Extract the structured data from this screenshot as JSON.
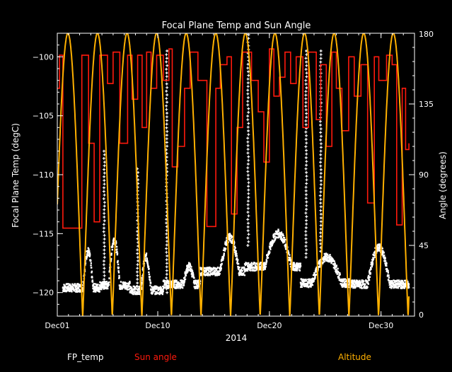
{
  "chart_data": {
    "type": "line",
    "title": "Focal Plane Temp and Sun Angle",
    "xlabel": "2014",
    "ylabel_left": "Focal Plane Temp (degC)",
    "ylabel_right": "Angle (degrees)",
    "x_unit": "day of December 2014",
    "xlim": [
      0,
      32
    ],
    "ylim_left": [
      -122,
      -98
    ],
    "ylim_right": [
      0,
      180
    ],
    "x_ticks": [
      {
        "label": "Dec01",
        "value": 0
      },
      {
        "label": "Dec10",
        "value": 9
      },
      {
        "label": "Dec20",
        "value": 19
      },
      {
        "label": "Dec30",
        "value": 29
      }
    ],
    "y_ticks_left": [
      -100,
      -105,
      -110,
      -115,
      -120
    ],
    "y_ticks_right": [
      0,
      45,
      90,
      135,
      180
    ],
    "grid": false,
    "legend_position": "bottom",
    "colors": {
      "background": "#000000",
      "axes": "#ffffff",
      "fp_temp": "#ffffff",
      "sun_angle": "#ff1a0d",
      "altitude": "#ffb000"
    },
    "series": [
      {
        "name": "FP_temp",
        "axis": "left",
        "style": "points",
        "segments": [
          {
            "x0": 0.5,
            "x1": 3.8,
            "base": -119.6,
            "bump": [
              2.3,
              3.2,
              -116.5
            ]
          },
          {
            "x0": 3.8,
            "x1": 6.5,
            "base": -119.4,
            "bump": [
              4.6,
              5.6,
              -115.5
            ]
          },
          {
            "x0": 6.5,
            "x1": 9.5,
            "base": -119.8,
            "bump": [
              7.5,
              8.4,
              -117.0
            ]
          },
          {
            "x0": 9.5,
            "x1": 12.8,
            "base": -119.3,
            "bump": [
              11.3,
              12.3,
              -117.8
            ]
          },
          {
            "x0": 12.8,
            "x1": 16.8,
            "base": -118.2,
            "bump": [
              14.6,
              16.3,
              -115.3
            ]
          },
          {
            "x0": 16.8,
            "x1": 21.8,
            "base": -117.8,
            "bump": [
              18.6,
              21.0,
              -115.0
            ]
          },
          {
            "x0": 21.8,
            "x1": 26.5,
            "base": -119.2,
            "bump": [
              22.8,
              25.5,
              -117.0
            ]
          },
          {
            "x0": 26.5,
            "x1": 31.5,
            "base": -119.3,
            "bump": [
              27.8,
              29.8,
              -116.2
            ]
          }
        ],
        "spikes": [
          {
            "x": 4.2,
            "ymin": -119.5,
            "ymax": -108.0
          },
          {
            "x": 7.2,
            "ymin": -119.5,
            "ymax": -109.5
          },
          {
            "x": 9.8,
            "ymin": -120.0,
            "ymax": -99.5
          },
          {
            "x": 17.1,
            "ymin": -116.0,
            "ymax": -97.5
          },
          {
            "x": 22.3,
            "ymin": -117.0,
            "ymax": -99.5
          },
          {
            "x": 23.6,
            "ymin": -116.5,
            "ymax": -99.5
          }
        ]
      },
      {
        "name": "Sun angle",
        "axis": "right",
        "style": "step",
        "points": [
          [
            0.0,
            145
          ],
          [
            0.2,
            145
          ],
          [
            0.2,
            166
          ],
          [
            0.5,
            166
          ],
          [
            0.5,
            56
          ],
          [
            2.2,
            56
          ],
          [
            2.2,
            166
          ],
          [
            2.8,
            166
          ],
          [
            2.8,
            110
          ],
          [
            3.3,
            110
          ],
          [
            3.3,
            60
          ],
          [
            3.8,
            60
          ],
          [
            3.8,
            166
          ],
          [
            4.5,
            166
          ],
          [
            4.5,
            148
          ],
          [
            5.0,
            148
          ],
          [
            5.0,
            168
          ],
          [
            5.6,
            168
          ],
          [
            5.6,
            110
          ],
          [
            6.3,
            110
          ],
          [
            6.3,
            166
          ],
          [
            6.7,
            166
          ],
          [
            6.7,
            138
          ],
          [
            7.2,
            138
          ],
          [
            7.2,
            166
          ],
          [
            7.6,
            166
          ],
          [
            7.6,
            120
          ],
          [
            8.0,
            120
          ],
          [
            8.0,
            168
          ],
          [
            8.4,
            168
          ],
          [
            8.4,
            145
          ],
          [
            8.9,
            145
          ],
          [
            8.9,
            166
          ],
          [
            9.5,
            166
          ],
          [
            9.5,
            150
          ],
          [
            10.0,
            150
          ],
          [
            10.0,
            170
          ],
          [
            10.3,
            170
          ],
          [
            10.3,
            95
          ],
          [
            10.8,
            95
          ],
          [
            10.8,
            108
          ],
          [
            11.4,
            108
          ],
          [
            11.4,
            145
          ],
          [
            11.9,
            145
          ],
          [
            11.9,
            168
          ],
          [
            12.6,
            168
          ],
          [
            12.6,
            150
          ],
          [
            13.4,
            150
          ],
          [
            13.4,
            57
          ],
          [
            14.2,
            57
          ],
          [
            14.2,
            145
          ],
          [
            14.6,
            145
          ],
          [
            14.6,
            160
          ],
          [
            15.2,
            160
          ],
          [
            15.2,
            165
          ],
          [
            15.6,
            165
          ],
          [
            15.6,
            65
          ],
          [
            16.1,
            65
          ],
          [
            16.1,
            120
          ],
          [
            16.6,
            120
          ],
          [
            16.6,
            168
          ],
          [
            17.4,
            168
          ],
          [
            17.4,
            150
          ],
          [
            18.0,
            150
          ],
          [
            18.0,
            130
          ],
          [
            18.5,
            130
          ],
          [
            18.5,
            98
          ],
          [
            19.0,
            98
          ],
          [
            19.0,
            170
          ],
          [
            19.4,
            170
          ],
          [
            19.4,
            140
          ],
          [
            19.9,
            140
          ],
          [
            19.9,
            152
          ],
          [
            20.4,
            152
          ],
          [
            20.4,
            168
          ],
          [
            20.9,
            168
          ],
          [
            20.9,
            148
          ],
          [
            21.4,
            148
          ],
          [
            21.4,
            165
          ],
          [
            22.0,
            165
          ],
          [
            22.0,
            120
          ],
          [
            22.5,
            120
          ],
          [
            22.5,
            168
          ],
          [
            23.2,
            168
          ],
          [
            23.2,
            125
          ],
          [
            23.6,
            125
          ],
          [
            23.6,
            160
          ],
          [
            24.1,
            160
          ],
          [
            24.1,
            108
          ],
          [
            24.6,
            108
          ],
          [
            24.6,
            168
          ],
          [
            25.0,
            168
          ],
          [
            25.0,
            145
          ],
          [
            25.5,
            145
          ],
          [
            25.5,
            118
          ],
          [
            26.1,
            118
          ],
          [
            26.1,
            165
          ],
          [
            26.6,
            165
          ],
          [
            26.6,
            140
          ],
          [
            27.2,
            140
          ],
          [
            27.2,
            160
          ],
          [
            27.8,
            160
          ],
          [
            27.8,
            72
          ],
          [
            28.4,
            72
          ],
          [
            28.4,
            165
          ],
          [
            28.8,
            165
          ],
          [
            28.8,
            150
          ],
          [
            29.5,
            150
          ],
          [
            29.5,
            166
          ],
          [
            30.0,
            166
          ],
          [
            30.0,
            160
          ],
          [
            30.4,
            160
          ],
          [
            30.4,
            58
          ],
          [
            30.9,
            58
          ],
          [
            30.9,
            145
          ],
          [
            31.2,
            145
          ],
          [
            31.2,
            106
          ],
          [
            31.5,
            106
          ],
          [
            31.5,
            110
          ]
        ]
      },
      {
        "name": "Altitude",
        "axis": "right",
        "style": "line",
        "periodic": {
          "period": 2.65,
          "first_peak": 0.95,
          "min": 0,
          "max": 180,
          "x0": 0.0,
          "x1": 31.5
        }
      }
    ]
  }
}
